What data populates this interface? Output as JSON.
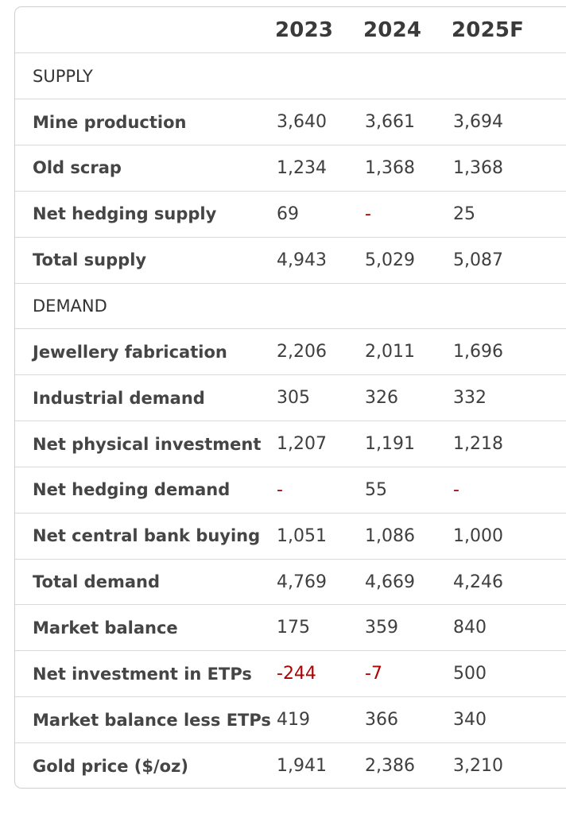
{
  "table": {
    "columns": [
      "2023",
      "2024",
      "2025F"
    ],
    "sections": {
      "supply": "SUPPLY",
      "demand": "DEMAND"
    },
    "rows": {
      "mine_production": {
        "label": "Mine production",
        "values": [
          "3,640",
          "3,661",
          "3,694"
        ]
      },
      "old_scrap": {
        "label": "Old scrap",
        "values": [
          "1,234",
          "1,368",
          "1,368"
        ]
      },
      "net_hedging_supply": {
        "label": "Net hedging supply",
        "values": [
          "69",
          "-",
          "25"
        ]
      },
      "total_supply": {
        "label": "Total supply",
        "values": [
          "4,943",
          "5,029",
          "5,087"
        ]
      },
      "jewellery_fabrication": {
        "label": "Jewellery fabrication",
        "values": [
          "2,206",
          "2,011",
          "1,696"
        ]
      },
      "industrial_demand": {
        "label": "Industrial demand",
        "values": [
          "305",
          "326",
          "332"
        ]
      },
      "net_physical_investment": {
        "label": "Net physical investment",
        "values": [
          "1,207",
          "1,191",
          "1,218"
        ]
      },
      "net_hedging_demand": {
        "label": "Net hedging demand",
        "values": [
          "-",
          "55",
          "-"
        ]
      },
      "net_central_bank_buying": {
        "label": "Net central bank buying",
        "values": [
          "1,051",
          "1,086",
          "1,000"
        ]
      },
      "total_demand": {
        "label": "Total demand",
        "values": [
          "4,769",
          "4,669",
          "4,246"
        ]
      },
      "market_balance": {
        "label": "Market balance",
        "values": [
          "175",
          "359",
          "840"
        ]
      },
      "net_investment_etps": {
        "label": "Net investment in ETPs",
        "values": [
          "-244",
          "-7",
          "500"
        ]
      },
      "market_balance_less_etps": {
        "label": "Market balance less ETPs",
        "values": [
          "419",
          "366",
          "340"
        ]
      },
      "gold_price": {
        "label": "Gold price ($/oz)",
        "values": [
          "1,941",
          "2,386",
          "3,210"
        ]
      }
    },
    "colors": {
      "negative": "#b00000",
      "border": "#d9d9d9",
      "text": "#404040"
    }
  }
}
